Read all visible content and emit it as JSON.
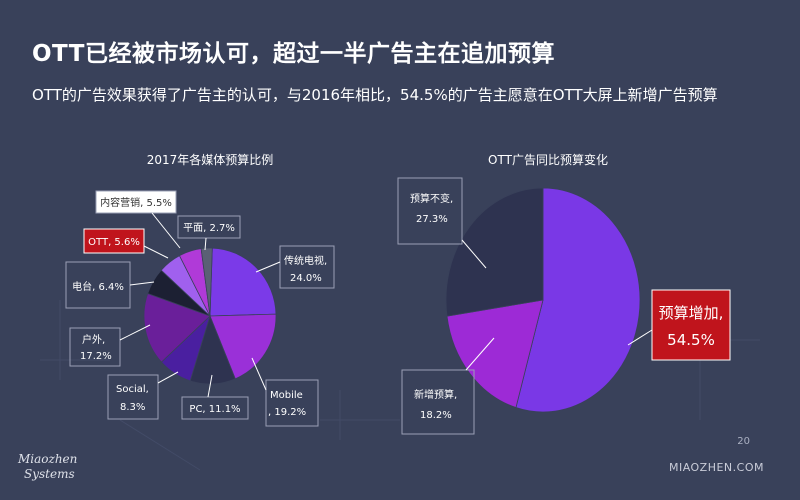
{
  "slide": {
    "title": "OTT已经被市场认可，超过一半广告主在追加预算",
    "subtitle": "OTT的广告效果获得了广告主的认可，与2016年相比，54.5%的广告主愿意在OTT大屏上新增广告预算",
    "page_number": "20",
    "website": "MIAOZHEN.COM",
    "logo_line1": "Miaozhen",
    "logo_line2": "Systems",
    "colors": {
      "background": "#39415a",
      "highlight": "#c0141c"
    }
  },
  "chart_data": [
    {
      "type": "pie",
      "title": "2017年各媒体预算比例",
      "slices": [
        {
          "name": "传统电视",
          "value": 24.0,
          "label_name": "传统电视,",
          "label_value": "24.0%",
          "color": "#7b3ae8"
        },
        {
          "name": "Mobile",
          "value": 19.2,
          "label_name": "Mobile",
          "label_value": ", 19.2%",
          "color": "#9a30d8"
        },
        {
          "name": "PC",
          "value": 11.1,
          "label_name": "PC, 11.1%",
          "label_value": "",
          "color": "#2e3350"
        },
        {
          "name": "Social",
          "value": 8.3,
          "label_name": "Social,",
          "label_value": "8.3%",
          "color": "#4a1fa0"
        },
        {
          "name": "户外",
          "value": 17.2,
          "label_name": "户外,",
          "label_value": "17.2%",
          "color": "#6a1f9a"
        },
        {
          "name": "电台",
          "value": 6.4,
          "label_name": "电台, 6.4%",
          "label_value": "",
          "color": "#1c2033"
        },
        {
          "name": "OTT",
          "value": 5.6,
          "label_name": "OTT, 5.6%",
          "label_value": "",
          "color": "#a060ee",
          "highlight": true
        },
        {
          "name": "内容营销",
          "value": 5.5,
          "label_name": "内容营销, 5.5%",
          "label_value": "",
          "color": "#b03ad8"
        },
        {
          "name": "平面",
          "value": 2.7,
          "label_name": "平面, 2.7%",
          "label_value": "",
          "color": "#5a6075"
        }
      ]
    },
    {
      "type": "pie",
      "title": "OTT广告同比预算变化",
      "slices": [
        {
          "name": "预算增加",
          "value": 54.5,
          "label_name": "预算增加,",
          "label_value": "54.5%",
          "color": "#7a38e6",
          "highlight": true
        },
        {
          "name": "新增预算",
          "value": 18.2,
          "label_name": "新增预算,",
          "label_value": "18.2%",
          "color": "#9d2ad6"
        },
        {
          "name": "预算不变",
          "value": 27.3,
          "label_name": "预算不变,",
          "label_value": "27.3%",
          "color": "#2e3350"
        }
      ]
    }
  ]
}
